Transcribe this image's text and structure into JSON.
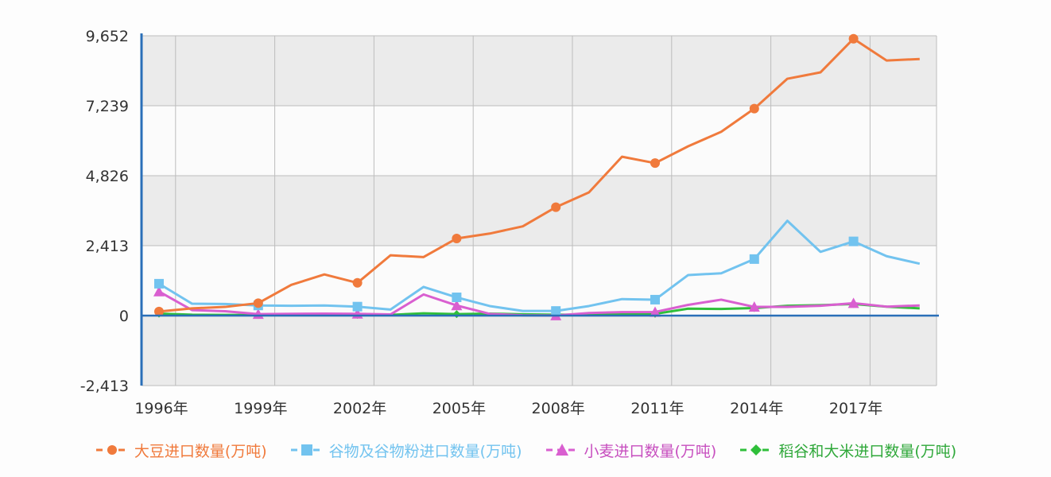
{
  "chart_data": {
    "type": "line",
    "title": "",
    "xlabel": "",
    "ylabel": "",
    "ylim": [
      -2413,
      9652
    ],
    "yticks": [
      "9,652",
      "7,239",
      "4,826",
      "2,413",
      "0",
      "-2,413"
    ],
    "ytick_values": [
      9652,
      7239,
      4826,
      2413,
      0,
      -2413
    ],
    "xtick_labels": [
      "1996年",
      "1999年",
      "2002年",
      "2005年",
      "2008年",
      "2011年",
      "2014年",
      "2017年"
    ],
    "categories": [
      "1996",
      "1997",
      "1998",
      "1999",
      "2000",
      "2001",
      "2002",
      "2003",
      "2004",
      "2005",
      "2006",
      "2007",
      "2008",
      "2009",
      "2010",
      "2011",
      "2012",
      "2013",
      "2014",
      "2015",
      "2016",
      "2017",
      "2018",
      "2019"
    ],
    "grid": true,
    "legend_position": "bottom",
    "series": [
      {
        "name": "大豆进口数量(万吨)",
        "color": "#f07a3c",
        "marker": "circle",
        "values": [
          140,
          250,
          300,
          430,
          1060,
          1420,
          1130,
          2080,
          2020,
          2660,
          2830,
          3080,
          3740,
          4250,
          5480,
          5260,
          5840,
          6340,
          7140,
          8170,
          8390,
          9550,
          8800,
          8850
        ]
      },
      {
        "name": "谷物及谷物粉进口数量(万吨)",
        "color": "#72c3ef",
        "marker": "square",
        "values": [
          1100,
          410,
          400,
          350,
          340,
          350,
          310,
          210,
          990,
          630,
          330,
          160,
          160,
          330,
          570,
          550,
          1400,
          1460,
          1950,
          3270,
          2200,
          2560,
          2050,
          1790
        ]
      },
      {
        "name": "小麦进口数量(万吨)",
        "color": "#d95fd0",
        "marker": "triangle",
        "values": [
          830,
          190,
          150,
          50,
          60,
          70,
          60,
          40,
          730,
          350,
          60,
          10,
          4,
          90,
          120,
          125,
          370,
          550,
          300,
          300,
          340,
          430,
          310,
          350
        ]
      },
      {
        "name": "稻谷和大米进口数量(万吨)",
        "color": "#2fbf3a",
        "marker": "diamond",
        "values": [
          70,
          30,
          25,
          20,
          25,
          30,
          25,
          25,
          80,
          50,
          70,
          45,
          30,
          35,
          40,
          60,
          240,
          230,
          260,
          340,
          360,
          400,
          310,
          250
        ]
      }
    ]
  },
  "legend": {
    "items": [
      {
        "label": "大豆进口数量(万吨)",
        "color": "#f07a3c",
        "icon": "circle-marker-icon"
      },
      {
        "label": "谷物及谷物粉进口数量(万吨)",
        "color": "#72c3ef",
        "icon": "square-marker-icon"
      },
      {
        "label": "小麦进口数量(万吨)",
        "color": "#d95fd0",
        "icon": "triangle-marker-icon"
      },
      {
        "label": "稻谷和大米进口数量(万吨)",
        "color": "#2fbf3a",
        "icon": "diamond-marker-icon"
      }
    ]
  }
}
